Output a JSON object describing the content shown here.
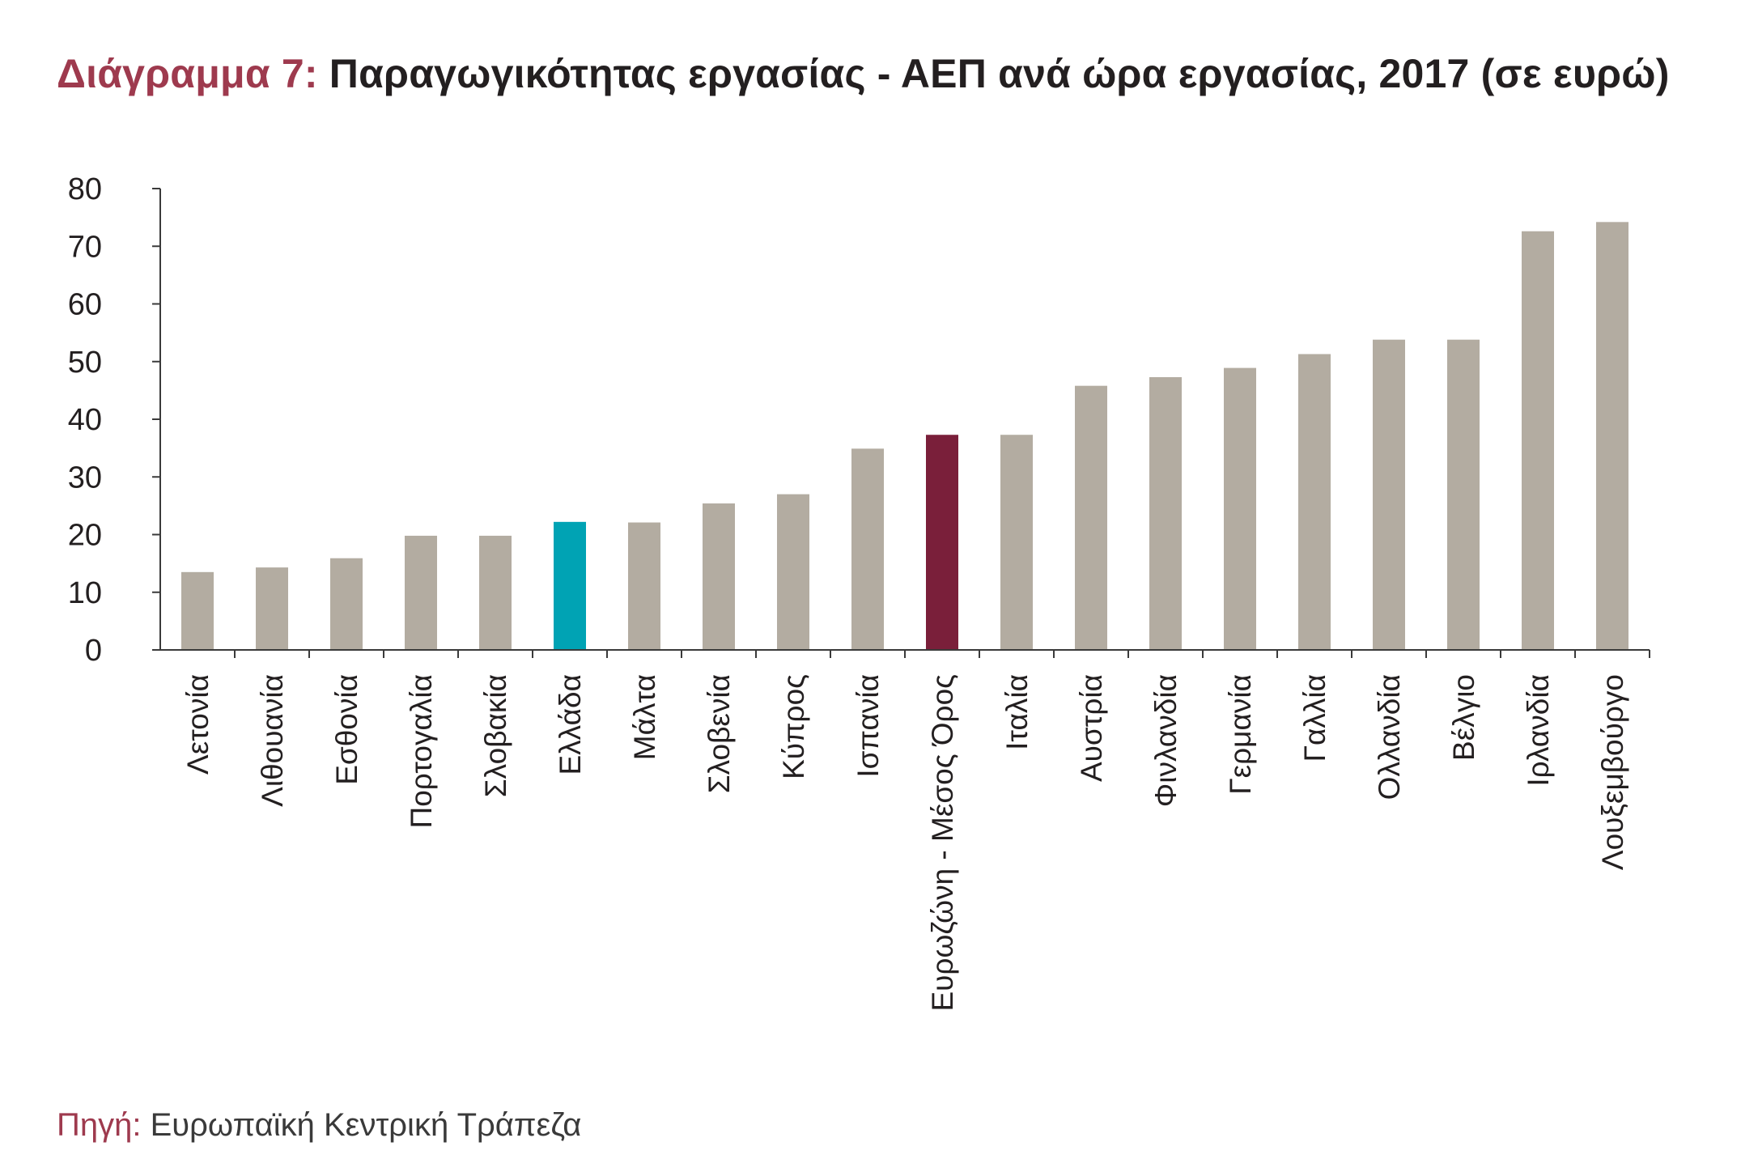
{
  "title": {
    "prefix": "Διάγραμμα 7:",
    "text": " Παραγωγικότητας εργασίας - ΑΕΠ ανά ώρα εργασίας, 2017 (σε ευρώ)"
  },
  "source": {
    "prefix": "Πηγή:",
    "text": " Ευρωπαϊκή Κεντρική Τράπεζα"
  },
  "colors": {
    "default_bar": "#b3aca1",
    "greece_bar": "#00a3b4",
    "eurozone_bar": "#7a1f3a",
    "axis": "#3a3a3a",
    "text": "#231f20",
    "title_accent": "#9e3a4e"
  },
  "chart_data": {
    "type": "bar",
    "title": "Διάγραμμα 7: Παραγωγικότητας εργασίας - ΑΕΠ ανά ώρα εργασίας, 2017 (σε ευρώ)",
    "xlabel": "",
    "ylabel": "",
    "ylim": [
      0,
      80
    ],
    "yticks": [
      0,
      10,
      20,
      30,
      40,
      50,
      60,
      70,
      80
    ],
    "grid": false,
    "legend": "none",
    "categories": [
      "Λετονία",
      "Λιθουανία",
      "Εσθονία",
      "Πορτογαλία",
      "Σλοβακία",
      "Ελλάδα",
      "Μάλτα",
      "Σλοβενία",
      "Κύπρος",
      "Ισπανία",
      "Ευρωζώνη - Μέσος Όρος",
      "Ιταλία",
      "Αυστρία",
      "Φινλανδία",
      "Γερμανία",
      "Γαλλία",
      "Ολλανδία",
      "Βέλγιο",
      "Ιρλανδία",
      "Λουξεμβούργο"
    ],
    "values": [
      13.5,
      14.3,
      15.9,
      19.8,
      19.8,
      22.2,
      22.1,
      25.4,
      27.0,
      34.9,
      37.3,
      37.3,
      45.8,
      47.3,
      48.9,
      51.3,
      53.8,
      53.8,
      72.6,
      74.2
    ],
    "highlights": {
      "Ελλάδα": "greece_bar",
      "Ευρωζώνη - Μέσος Όρος": "eurozone_bar"
    }
  }
}
